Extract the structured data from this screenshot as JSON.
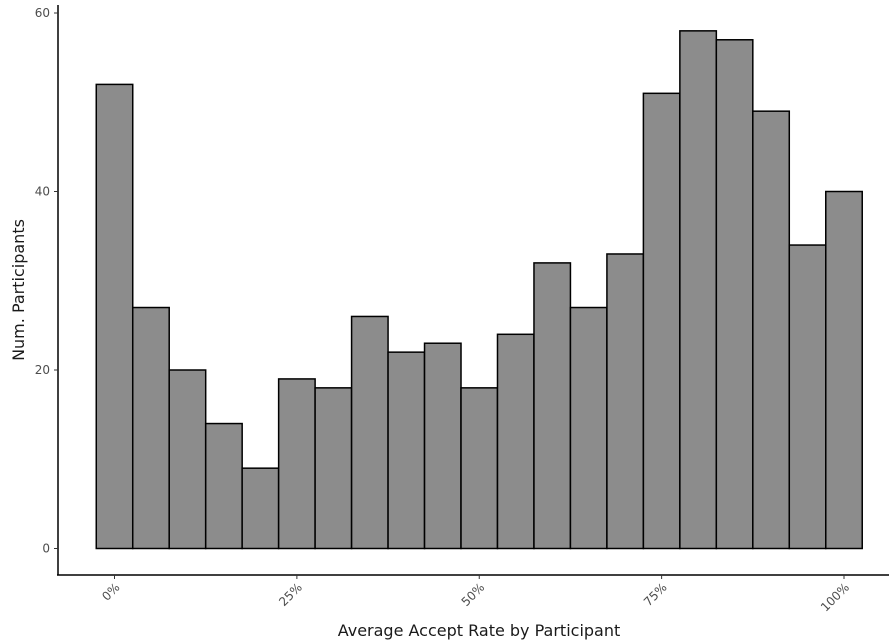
{
  "chart_data": {
    "type": "bar",
    "title": "",
    "xlabel": "Average Accept Rate by Participant",
    "ylabel": "Num. Participants",
    "x_tick_labels": [
      "0%",
      "25%",
      "50%",
      "75%",
      "100%"
    ],
    "x_tick_values": [
      0,
      0.25,
      0.5,
      0.75,
      1.0
    ],
    "y_tick_labels": [
      "0",
      "20",
      "40",
      "60"
    ],
    "y_tick_values": [
      0,
      20,
      40,
      60
    ],
    "ylim": [
      0,
      60
    ],
    "xlim": [
      -0.0525,
      1.0525
    ],
    "bin_centers": [
      0,
      0.05,
      0.1,
      0.15,
      0.2,
      0.25,
      0.3,
      0.35,
      0.4,
      0.45,
      0.5,
      0.55,
      0.6,
      0.65,
      0.7,
      0.75,
      0.8,
      0.85,
      0.9,
      0.95,
      1.0
    ],
    "values": [
      52,
      27,
      20,
      14,
      9,
      19,
      18,
      26,
      22,
      23,
      18,
      24,
      32,
      27,
      33,
      51,
      58,
      57,
      49,
      34,
      40
    ],
    "bin_width": 0.05,
    "grid": false,
    "bar_color": "#8c8c8c",
    "bar_edge_color": "#000000"
  }
}
